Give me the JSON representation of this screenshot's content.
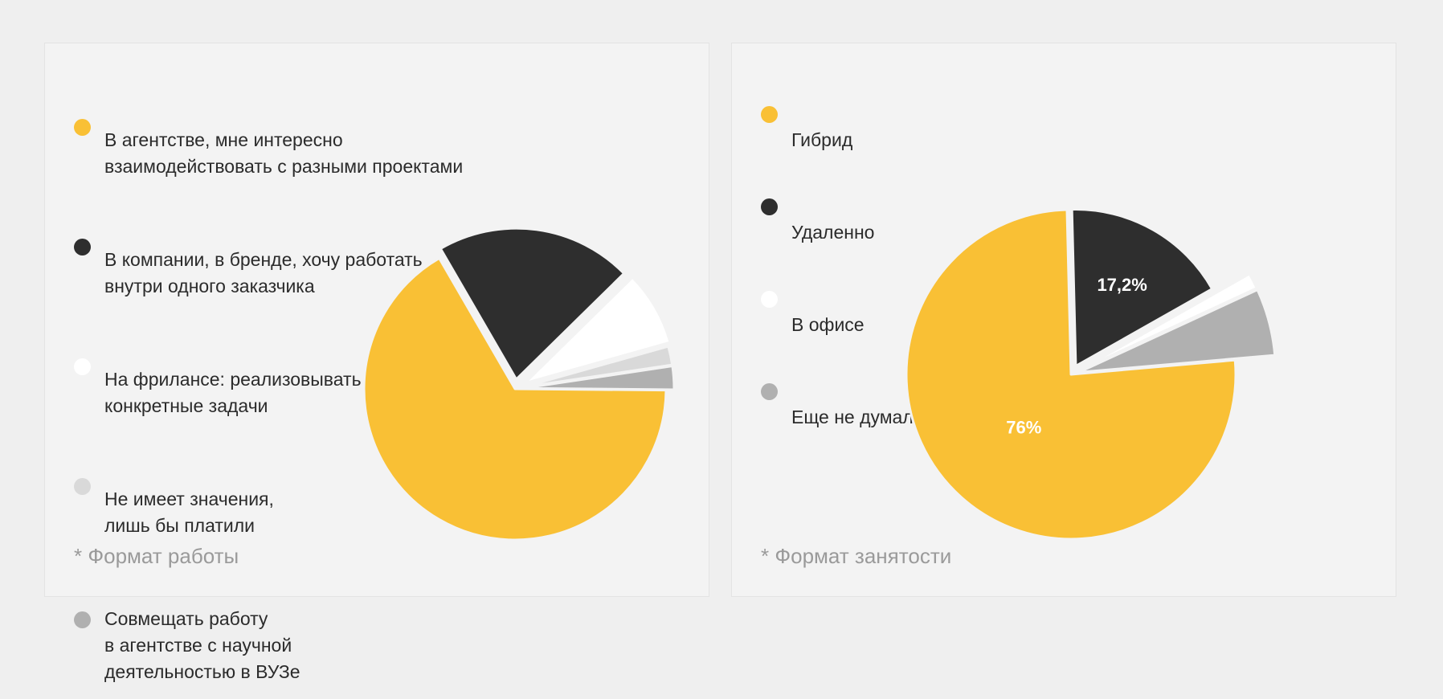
{
  "colors": {
    "yellow": "#f9c035",
    "dark": "#2e2e2e",
    "white": "#ffffff",
    "light_gray": "#d9d9d9",
    "gray": "#b0b0b0"
  },
  "chart_data": [
    {
      "type": "pie",
      "footnote": "* Формат работы",
      "legend_placement": "top-left",
      "slices": [
        {
          "label": "В агентстве, мне интересно\nвзаимодействовать с разными проектами",
          "value": 66.5,
          "color": "#f9c035"
        },
        {
          "label": "В компании, в бренде, хочу работать\nвнутри одного заказчика",
          "value": 21,
          "color": "#2e2e2e"
        },
        {
          "label": "На фрилансе: реализовывать\nконкретные задачи",
          "value": 8,
          "color": "#ffffff"
        },
        {
          "label": "Не имеет значения,\nлишь бы платили",
          "value": 2,
          "color": "#d9d9d9"
        },
        {
          "label": "Совмещать работу\nв агентстве с научной\nдеятельностью в ВУЗе",
          "value": 2.5,
          "color": "#b0b0b0"
        }
      ],
      "data_labels": []
    },
    {
      "type": "pie",
      "footnote": "* Формат занятости",
      "legend_placement": "top-left",
      "slices": [
        {
          "label": "Гибрид",
          "value": 76,
          "color": "#f9c035"
        },
        {
          "label": "Удаленно",
          "value": 17.2,
          "color": "#2e2e2e"
        },
        {
          "label": "В офисе",
          "value": 1.3,
          "color": "#ffffff"
        },
        {
          "label": "Еще не думал/а",
          "value": 5.5,
          "color": "#b0b0b0"
        }
      ],
      "data_labels": [
        {
          "slice": 0,
          "text": "76%"
        },
        {
          "slice": 1,
          "text": "17,2%"
        }
      ]
    }
  ]
}
